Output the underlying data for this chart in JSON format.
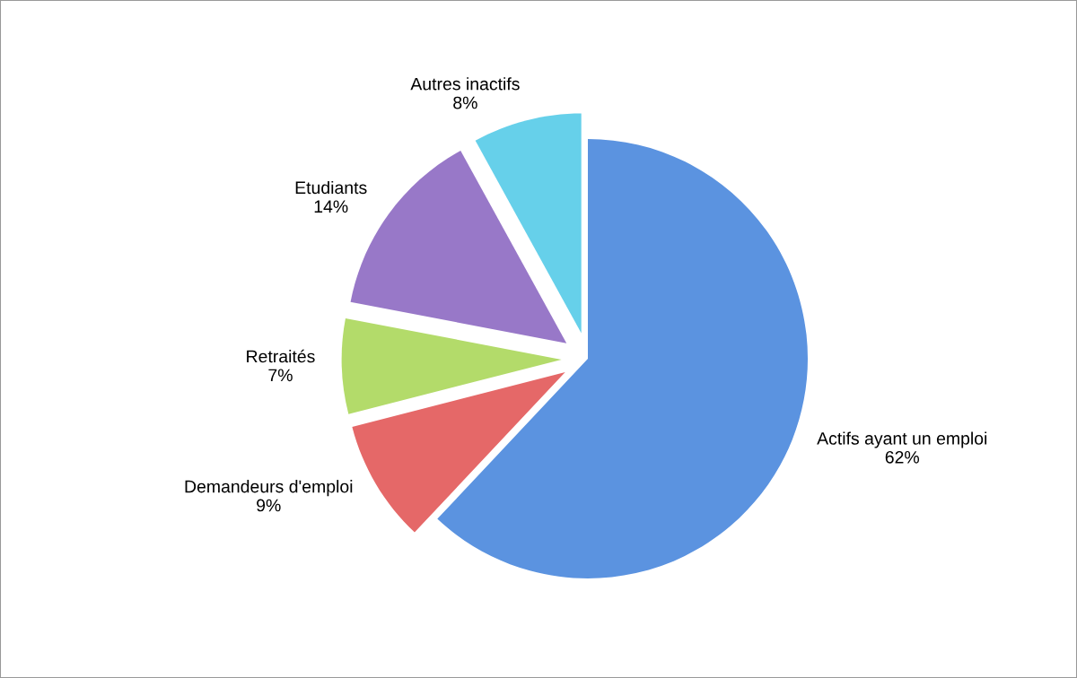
{
  "chart_data": {
    "type": "pie",
    "categories": [
      "Actifs ayant un emploi",
      "Demandeurs d'emploi",
      "Retraités",
      "Etudiants",
      "Autres inactifs"
    ],
    "values": [
      62,
      9,
      7,
      14,
      8
    ],
    "colors": [
      "#5b93e0",
      "#e56868",
      "#b3db6a",
      "#9878c8",
      "#66d0ea"
    ],
    "value_labels": [
      "62%",
      "9%",
      "7%",
      "14%",
      "8%"
    ],
    "legend": false
  }
}
